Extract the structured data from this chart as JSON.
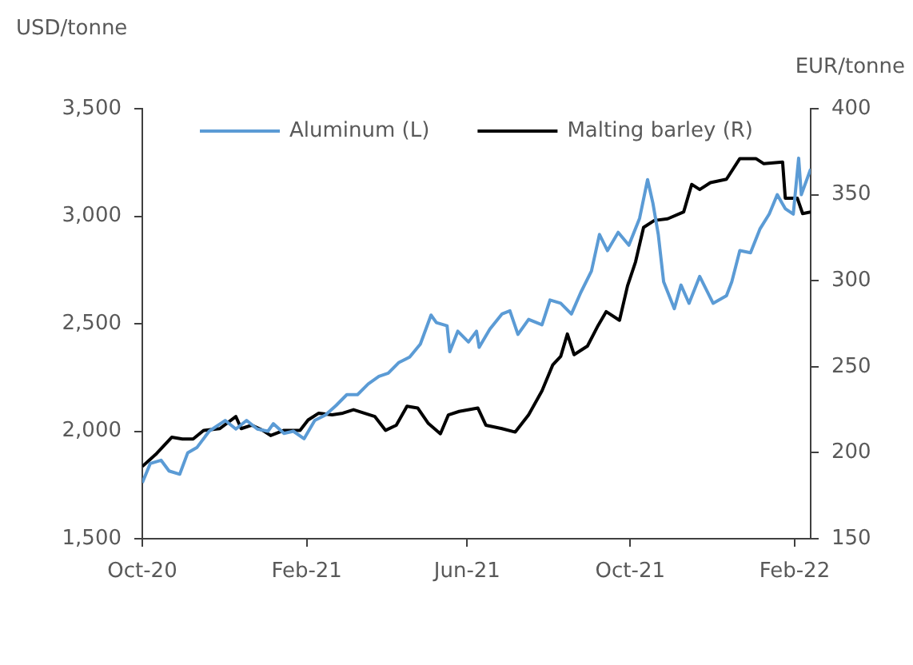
{
  "chart_data": {
    "type": "line",
    "ylabel": "USD/tonne",
    "y2label": "EUR/tonne",
    "xlim": [
      "2020-10-01",
      "2022-02-13"
    ],
    "xticks": [
      {
        "value": "2020-10-01",
        "label": "Oct-20"
      },
      {
        "value": "2021-02-01",
        "label": "Feb-21"
      },
      {
        "value": "2021-06-01",
        "label": "Jun-21"
      },
      {
        "value": "2021-10-01",
        "label": "Oct-21"
      },
      {
        "value": "2022-02-01",
        "label": "Feb-22"
      }
    ],
    "ylim": [
      1500,
      3500
    ],
    "yticks": [
      {
        "value": 1500,
        "label": "1,500"
      },
      {
        "value": 2000,
        "label": "2,000"
      },
      {
        "value": 2500,
        "label": "2,500"
      },
      {
        "value": 3000,
        "label": "3,000"
      },
      {
        "value": 3500,
        "label": "3,500"
      }
    ],
    "y2lim": [
      150,
      400
    ],
    "y2ticks": [
      150,
      200,
      250,
      300,
      350,
      400
    ],
    "grid": false,
    "legend": "top",
    "marker": "none",
    "line_style": "solid",
    "series": [
      {
        "name": "Aluminum (L)",
        "color": "#5b9bd5",
        "x": [
          "2020-10-01",
          "2020-10-07",
          "2020-10-15",
          "2020-10-21",
          "2020-10-29",
          "2020-11-04",
          "2020-11-11",
          "2020-11-20",
          "2020-12-02",
          "2020-12-10",
          "2020-12-18",
          "2020-12-26",
          "2021-01-03",
          "2021-01-07",
          "2021-01-15",
          "2021-01-22",
          "2021-01-30",
          "2021-02-07",
          "2021-02-15",
          "2021-02-23",
          "2021-03-03",
          "2021-03-11",
          "2021-03-19",
          "2021-03-27",
          "2021-04-03",
          "2021-04-11",
          "2021-04-19",
          "2021-04-27",
          "2021-05-05",
          "2021-05-09",
          "2021-05-17",
          "2021-05-19",
          "2021-05-25",
          "2021-06-02",
          "2021-06-08",
          "2021-06-10",
          "2021-06-18",
          "2021-06-27",
          "2021-07-03",
          "2021-07-09",
          "2021-07-17",
          "2021-07-27",
          "2021-08-02",
          "2021-08-10",
          "2021-08-18",
          "2021-08-25",
          "2021-09-02",
          "2021-09-08",
          "2021-09-14",
          "2021-09-22",
          "2021-09-30",
          "2021-10-08",
          "2021-10-14",
          "2021-10-18",
          "2021-10-22",
          "2021-10-26",
          "2021-11-03",
          "2021-11-08",
          "2021-11-14",
          "2021-11-22",
          "2021-12-02",
          "2021-12-12",
          "2021-12-16",
          "2021-12-22",
          "2021-12-30",
          "2022-01-06",
          "2022-01-13",
          "2022-01-19",
          "2022-01-25",
          "2022-01-31",
          "2022-02-04",
          "2022-02-06",
          "2022-02-13"
        ],
        "values": [
          1760,
          1850,
          1865,
          1815,
          1800,
          1900,
          1925,
          2000,
          2050,
          2010,
          2050,
          2010,
          2000,
          2035,
          1990,
          2000,
          1965,
          2050,
          2075,
          2120,
          2170,
          2170,
          2220,
          2255,
          2270,
          2320,
          2345,
          2405,
          2540,
          2505,
          2490,
          2370,
          2465,
          2415,
          2465,
          2390,
          2475,
          2545,
          2560,
          2450,
          2520,
          2495,
          2610,
          2595,
          2545,
          2645,
          2745,
          2915,
          2840,
          2925,
          2865,
          2990,
          3170,
          3060,
          2915,
          2695,
          2570,
          2680,
          2595,
          2720,
          2595,
          2630,
          2695,
          2840,
          2830,
          2940,
          3010,
          3100,
          3035,
          3010,
          3270,
          3100,
          3220
        ]
      },
      {
        "name": "Malting barley (R)",
        "color": "#000000",
        "axis": "y2",
        "x": [
          "2020-10-01",
          "2020-10-11",
          "2020-10-23",
          "2020-10-31",
          "2020-11-08",
          "2020-11-16",
          "2020-11-28",
          "2020-12-10",
          "2020-12-14",
          "2020-12-22",
          "2020-12-30",
          "2021-01-05",
          "2021-01-15",
          "2021-01-27",
          "2021-02-02",
          "2021-02-10",
          "2021-02-20",
          "2021-02-28",
          "2021-03-08",
          "2021-03-16",
          "2021-03-24",
          "2021-04-01",
          "2021-04-09",
          "2021-04-17",
          "2021-04-25",
          "2021-05-03",
          "2021-05-12",
          "2021-05-18",
          "2021-05-26",
          "2021-06-09",
          "2021-06-15",
          "2021-06-27",
          "2021-07-07",
          "2021-07-17",
          "2021-07-27",
          "2021-08-04",
          "2021-08-10",
          "2021-08-15",
          "2021-08-20",
          "2021-08-30",
          "2021-09-07",
          "2021-09-13",
          "2021-09-23",
          "2021-09-29",
          "2021-10-05",
          "2021-10-11",
          "2021-10-19",
          "2021-10-29",
          "2021-11-10",
          "2021-11-16",
          "2021-11-22",
          "2021-11-30",
          "2021-12-12",
          "2021-12-22",
          "2022-01-03",
          "2022-01-09",
          "2022-01-23",
          "2022-01-25",
          "2022-02-03",
          "2022-02-07",
          "2022-02-13"
        ],
        "values": [
          192,
          199,
          209,
          208,
          208,
          213,
          214,
          221,
          214,
          216,
          213,
          210,
          213,
          213,
          219,
          223,
          222,
          223,
          225,
          223,
          221,
          213,
          216,
          227,
          226,
          217,
          211,
          222,
          224,
          226,
          216,
          214,
          212,
          222,
          236,
          251,
          256,
          269,
          257,
          262,
          274,
          282,
          277,
          297,
          311,
          331,
          335,
          336,
          340,
          356,
          353,
          357,
          359,
          371,
          371,
          368,
          369,
          348,
          348,
          339,
          340
        ]
      }
    ]
  }
}
